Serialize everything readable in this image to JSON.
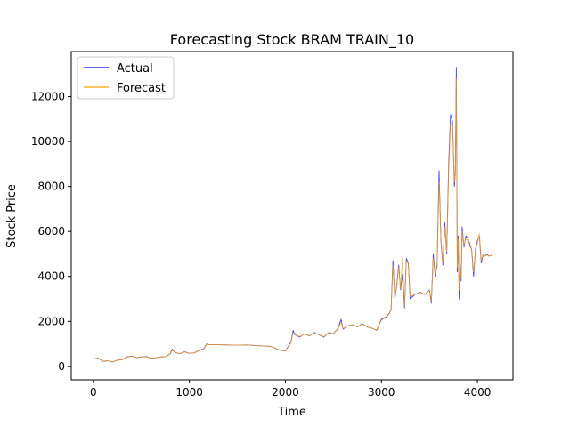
{
  "chart_data": {
    "type": "line",
    "title": "Forecasting Stock BRAM TRAIN_10",
    "xlabel": "Time",
    "ylabel": "Stock Price",
    "xlim": [
      -230,
      4370
    ],
    "ylim": [
      -600,
      14000
    ],
    "xticks": [
      0,
      1000,
      2000,
      3000,
      4000
    ],
    "yticks": [
      0,
      2000,
      4000,
      6000,
      8000,
      10000,
      12000
    ],
    "legend_position": "top-left",
    "grid": false,
    "series": [
      {
        "name": "Actual",
        "color": "#0000ff",
        "x": [
          0,
          50,
          100,
          150,
          200,
          250,
          300,
          350,
          400,
          450,
          500,
          550,
          600,
          650,
          700,
          750,
          800,
          820,
          850,
          900,
          950,
          1000,
          1050,
          1100,
          1150,
          1180,
          1200,
          1300,
          1400,
          1500,
          1600,
          1700,
          1800,
          1850,
          1950,
          2000,
          2060,
          2080,
          2100,
          2150,
          2200,
          2250,
          2300,
          2350,
          2400,
          2450,
          2500,
          2550,
          2580,
          2600,
          2650,
          2700,
          2750,
          2800,
          2850,
          2900,
          2950,
          3000,
          3050,
          3080,
          3100,
          3120,
          3140,
          3160,
          3180,
          3200,
          3220,
          3240,
          3260,
          3280,
          3300,
          3350,
          3400,
          3450,
          3480,
          3500,
          3520,
          3540,
          3560,
          3580,
          3600,
          3620,
          3640,
          3660,
          3680,
          3700,
          3720,
          3740,
          3760,
          3770,
          3780,
          3790,
          3800,
          3810,
          3820,
          3830,
          3840,
          3860,
          3880,
          3900,
          3920,
          3940,
          3960,
          3980,
          4000,
          4020,
          4040,
          4060,
          4080,
          4100,
          4120,
          4150
        ],
        "y": [
          320,
          370,
          220,
          250,
          190,
          280,
          300,
          420,
          460,
          380,
          420,
          440,
          360,
          380,
          420,
          430,
          560,
          760,
          620,
          560,
          650,
          580,
          600,
          700,
          780,
          1000,
          960,
          960,
          950,
          940,
          950,
          920,
          900,
          880,
          700,
          680,
          1100,
          1600,
          1400,
          1300,
          1450,
          1350,
          1500,
          1400,
          1300,
          1500,
          1450,
          1700,
          2100,
          1650,
          1800,
          1850,
          1750,
          1900,
          1750,
          1700,
          1600,
          2100,
          2200,
          2350,
          2500,
          4700,
          3000,
          3600,
          4500,
          3400,
          4100,
          2600,
          4800,
          4600,
          3000,
          3200,
          3300,
          3200,
          3300,
          3400,
          2800,
          5000,
          4000,
          4500,
          8700,
          5600,
          4500,
          6400,
          5000,
          9000,
          11200,
          10900,
          8000,
          8600,
          13300,
          4200,
          5800,
          3000,
          4500,
          3800,
          6200,
          5300,
          5800,
          5700,
          5400,
          5200,
          4000,
          5200,
          5600,
          5800,
          4600,
          5000,
          4900,
          5000,
          4900,
          4950
        ]
      },
      {
        "name": "Forecast",
        "color": "#ffa500",
        "x": [
          0,
          50,
          100,
          150,
          200,
          250,
          300,
          350,
          400,
          450,
          500,
          550,
          600,
          650,
          700,
          750,
          800,
          820,
          850,
          900,
          950,
          1000,
          1050,
          1100,
          1150,
          1180,
          1200,
          1300,
          1400,
          1500,
          1600,
          1700,
          1800,
          1850,
          1950,
          2000,
          2060,
          2080,
          2100,
          2150,
          2200,
          2250,
          2300,
          2350,
          2400,
          2450,
          2500,
          2550,
          2580,
          2600,
          2650,
          2700,
          2750,
          2800,
          2850,
          2900,
          2950,
          3000,
          3050,
          3080,
          3100,
          3120,
          3140,
          3160,
          3180,
          3200,
          3220,
          3240,
          3260,
          3280,
          3300,
          3350,
          3400,
          3450,
          3480,
          3500,
          3520,
          3540,
          3560,
          3580,
          3600,
          3620,
          3640,
          3660,
          3680,
          3700,
          3720,
          3740,
          3760,
          3770,
          3780,
          3790,
          3800,
          3810,
          3820,
          3830,
          3840,
          3860,
          3880,
          3900,
          3920,
          3940,
          3960,
          3980,
          4000,
          4020,
          4040,
          4060,
          4080,
          4100,
          4120,
          4150
        ],
        "y": [
          320,
          360,
          230,
          250,
          200,
          270,
          300,
          410,
          450,
          390,
          420,
          430,
          370,
          380,
          410,
          430,
          540,
          700,
          630,
          560,
          640,
          590,
          600,
          690,
          770,
          980,
          960,
          960,
          950,
          940,
          950,
          920,
          900,
          880,
          710,
          690,
          1050,
          1500,
          1420,
          1320,
          1430,
          1360,
          1480,
          1410,
          1320,
          1480,
          1450,
          1680,
          1950,
          1680,
          1790,
          1840,
          1760,
          1880,
          1760,
          1700,
          1620,
          2050,
          2180,
          2330,
          2480,
          4500,
          3100,
          3550,
          4400,
          3450,
          4850,
          2700,
          4700,
          4550,
          3100,
          3200,
          3280,
          3220,
          3300,
          3380,
          2900,
          4800,
          4100,
          4400,
          8200,
          5700,
          4600,
          6200,
          5100,
          8600,
          10800,
          10700,
          8200,
          8500,
          12800,
          4400,
          5700,
          3400,
          4400,
          3900,
          6000,
          5400,
          5700,
          5600,
          5500,
          5200,
          4200,
          5100,
          5500,
          5900,
          4700,
          5000,
          4900,
          4950,
          4900,
          4950
        ]
      }
    ]
  }
}
